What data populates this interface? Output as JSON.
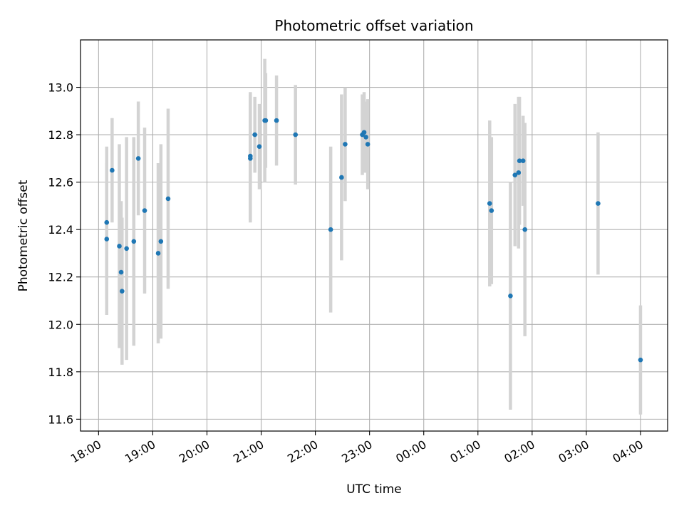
{
  "chart_data": {
    "type": "scatter",
    "title": "Photometric offset variation",
    "xlabel": "UTC time",
    "ylabel": "Photometric offset",
    "x_axis_kind": "time",
    "x_ticks": [
      "18:00",
      "19:00",
      "20:00",
      "21:00",
      "22:00",
      "23:00",
      "00:00",
      "01:00",
      "02:00",
      "03:00",
      "04:00"
    ],
    "y_ticks": [
      "11.6",
      "11.8",
      "12.0",
      "12.2",
      "12.4",
      "12.6",
      "12.8",
      "13.0"
    ],
    "xlim": [
      "17:40",
      "04:30"
    ],
    "ylim": [
      11.55,
      13.2
    ],
    "grid": true,
    "colors": {
      "point": "#1f77b4",
      "errorbar": "#d3d3d3",
      "grid": "#b0b0b0"
    },
    "points": [
      {
        "t": "18:09",
        "y": 12.43,
        "err": 0.32
      },
      {
        "t": "18:09",
        "y": 12.36,
        "err": 0.32
      },
      {
        "t": "18:15",
        "y": 12.65,
        "err": 0.22
      },
      {
        "t": "18:23",
        "y": 12.33,
        "err": 0.43
      },
      {
        "t": "18:25",
        "y": 12.22,
        "err": 0.3
      },
      {
        "t": "18:26",
        "y": 12.14,
        "err": 0.31
      },
      {
        "t": "18:31",
        "y": 12.32,
        "err": 0.47
      },
      {
        "t": "18:39",
        "y": 12.35,
        "err": 0.44
      },
      {
        "t": "18:44",
        "y": 12.7,
        "err": 0.24
      },
      {
        "t": "18:51",
        "y": 12.48,
        "err": 0.35
      },
      {
        "t": "19:06",
        "y": 12.3,
        "err": 0.38
      },
      {
        "t": "19:09",
        "y": 12.35,
        "err": 0.41
      },
      {
        "t": "19:17",
        "y": 12.53,
        "err": 0.38
      },
      {
        "t": "20:48",
        "y": 12.71,
        "err": 0.27
      },
      {
        "t": "20:48",
        "y": 12.7,
        "err": 0.27
      },
      {
        "t": "20:53",
        "y": 12.8,
        "err": 0.16
      },
      {
        "t": "20:58",
        "y": 12.75,
        "err": 0.18
      },
      {
        "t": "21:04",
        "y": 12.86,
        "err": 0.26
      },
      {
        "t": "21:05",
        "y": 12.86,
        "err": 0.2
      },
      {
        "t": "21:17",
        "y": 12.86,
        "err": 0.19
      },
      {
        "t": "21:38",
        "y": 12.8,
        "err": 0.21
      },
      {
        "t": "22:17",
        "y": 12.4,
        "err": 0.35
      },
      {
        "t": "22:29",
        "y": 12.62,
        "err": 0.35
      },
      {
        "t": "22:33",
        "y": 12.76,
        "err": 0.24
      },
      {
        "t": "22:52",
        "y": 12.8,
        "err": 0.17
      },
      {
        "t": "22:54",
        "y": 12.81,
        "err": 0.17
      },
      {
        "t": "22:56",
        "y": 12.79,
        "err": 0.15
      },
      {
        "t": "22:58",
        "y": 12.76,
        "err": 0.19
      },
      {
        "t": "01:13",
        "y": 12.51,
        "err": 0.35
      },
      {
        "t": "01:15",
        "y": 12.48,
        "err": 0.31
      },
      {
        "t": "01:36",
        "y": 12.12,
        "err": 0.48
      },
      {
        "t": "01:41",
        "y": 12.63,
        "err": 0.3
      },
      {
        "t": "01:45",
        "y": 12.64,
        "err": 0.32
      },
      {
        "t": "01:46",
        "y": 12.69,
        "err": 0.27
      },
      {
        "t": "01:50",
        "y": 12.69,
        "err": 0.19
      },
      {
        "t": "01:52",
        "y": 12.4,
        "err": 0.45
      },
      {
        "t": "03:13",
        "y": 12.51,
        "err": 0.3
      },
      {
        "t": "04:00",
        "y": 11.85,
        "err": 0.23
      }
    ]
  }
}
